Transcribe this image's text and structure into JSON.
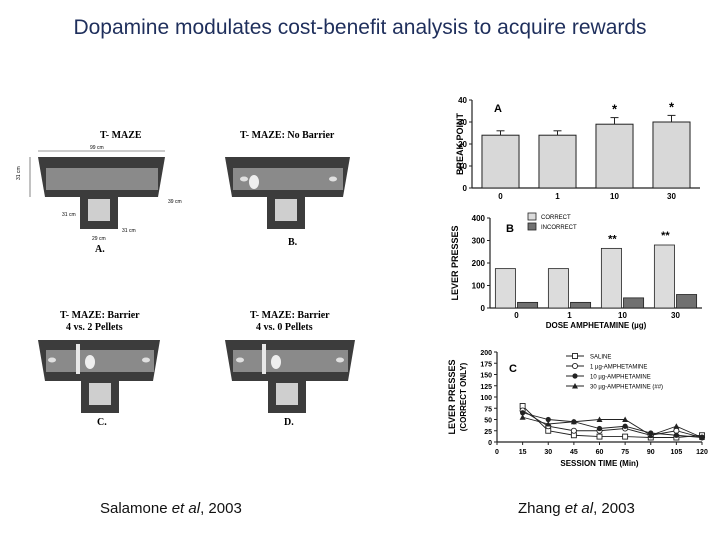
{
  "slide": {
    "title": "Dopamine modulates cost-benefit analysis to acquire rewards",
    "left_citation": {
      "author": "Salamone",
      "etal": "et al",
      "year": ", 2003"
    },
    "right_citation": {
      "author": "Zhang",
      "etal": "et al",
      "year": ", 2003"
    }
  },
  "mazes": {
    "a": {
      "title": "T- MAZE",
      "label": "A.",
      "dims": [
        "99 cm",
        "31 cm",
        "39 cm",
        "31 cm",
        "31 cm",
        "29 cm"
      ]
    },
    "b": {
      "title": "T- MAZE: No Barrier",
      "label": "B."
    },
    "c": {
      "title": "T- MAZE: Barrier",
      "subtitle": "4 vs. 2 Pellets",
      "label": "C."
    },
    "d": {
      "title": "T- MAZE: Barrier",
      "subtitle": "4 vs. 0 Pellets",
      "label": "D."
    }
  },
  "chart_data": [
    {
      "panel": "A",
      "type": "bar",
      "ylabel": "BREAK POINT",
      "categories": [
        "0",
        "1",
        "10",
        "30"
      ],
      "values": [
        24,
        24,
        29,
        30
      ],
      "errors": [
        2,
        2,
        3,
        3
      ],
      "significance": [
        "",
        "",
        "*",
        "*"
      ],
      "ylim": [
        0,
        40
      ],
      "yticks": [
        "0",
        "10",
        "20",
        "30",
        "40"
      ],
      "bar_color": "#d8d8d8"
    },
    {
      "panel": "B",
      "type": "bar",
      "ylabel": "LEVER PRESSES",
      "xlabel": "DOSE AMPHETAMINE (µg)",
      "categories": [
        "0",
        "1",
        "10",
        "30"
      ],
      "series": [
        {
          "name": "CORRECT",
          "values": [
            175,
            175,
            265,
            280
          ],
          "color": "#dcdcdc"
        },
        {
          "name": "INCORRECT",
          "values": [
            25,
            25,
            45,
            60
          ],
          "color": "#707070"
        }
      ],
      "significance": [
        "",
        "",
        "**",
        "**"
      ],
      "ylim": [
        0,
        400
      ],
      "yticks": [
        "0",
        "100",
        "200",
        "300",
        "400"
      ]
    },
    {
      "panel": "C",
      "type": "line",
      "ylabel": "LEVER PRESSES (CORRECT ONLY)",
      "xlabel": "SESSION TIME (Min)",
      "x": [
        15,
        30,
        45,
        60,
        75,
        90,
        105,
        120
      ],
      "xticks": [
        "0",
        "15",
        "30",
        "45",
        "60",
        "75",
        "90",
        "105",
        "120"
      ],
      "ylim": [
        0,
        200
      ],
      "yticks": [
        "0",
        "25",
        "50",
        "75",
        "100",
        "125",
        "150",
        "175",
        "200"
      ],
      "series": [
        {
          "name": "SALINE",
          "values": [
            80,
            25,
            15,
            12,
            12,
            10,
            10,
            15
          ],
          "marker": "square-open"
        },
        {
          "name": "1 µg-AMPHETAMINE",
          "values": [
            70,
            35,
            25,
            25,
            30,
            15,
            25,
            10
          ],
          "marker": "circle-open"
        },
        {
          "name": "10 µg-AMPHETAMINE",
          "values": [
            65,
            50,
            45,
            30,
            35,
            20,
            15,
            10
          ],
          "marker": "circle-filled"
        },
        {
          "name": "30 µg-AMPHETAMINE (##)",
          "values": [
            55,
            40,
            45,
            50,
            50,
            15,
            35,
            10
          ],
          "marker": "triangle-filled"
        }
      ]
    }
  ]
}
